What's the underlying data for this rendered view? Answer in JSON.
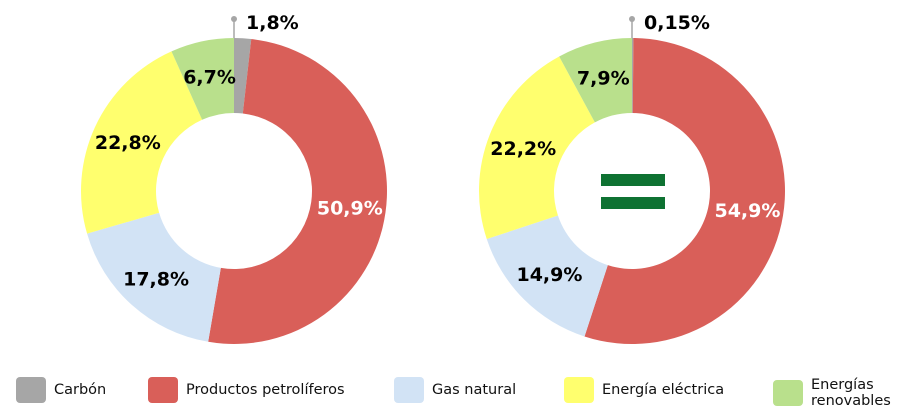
{
  "chart_data": [
    {
      "type": "pie",
      "donut": true,
      "categories": [
        "Carbón",
        "Productos petrolíferos",
        "Gas natural",
        "Energía eléctrica",
        "Energías renovables"
      ],
      "values": [
        1.8,
        50.9,
        17.8,
        22.8,
        6.7
      ],
      "labels": [
        "1,8%",
        "50,9%",
        "17,8%",
        "22,8%",
        "6,7%"
      ]
    },
    {
      "type": "pie",
      "donut": true,
      "categories": [
        "Carbón",
        "Productos petrolíferos",
        "Gas natural",
        "Energía eléctrica",
        "Energías renovables"
      ],
      "values": [
        0.15,
        54.9,
        14.9,
        22.2,
        7.9
      ],
      "labels": [
        "0,15%",
        "54,9%",
        "14,9%",
        "22,2%",
        "7,9%"
      ],
      "center_icon": "equals-icon"
    }
  ],
  "colors": [
    "#a6a6a6",
    "#d95f59",
    "#d2e3f5",
    "#ffff6e",
    "#b9e08c"
  ],
  "equals_color": "#0e7232",
  "legend": {
    "position": "bottom",
    "items": [
      "Carbón",
      "Productos petrolíferos",
      "Gas natural",
      "Energía eléctrica",
      "Energías renovables"
    ]
  }
}
